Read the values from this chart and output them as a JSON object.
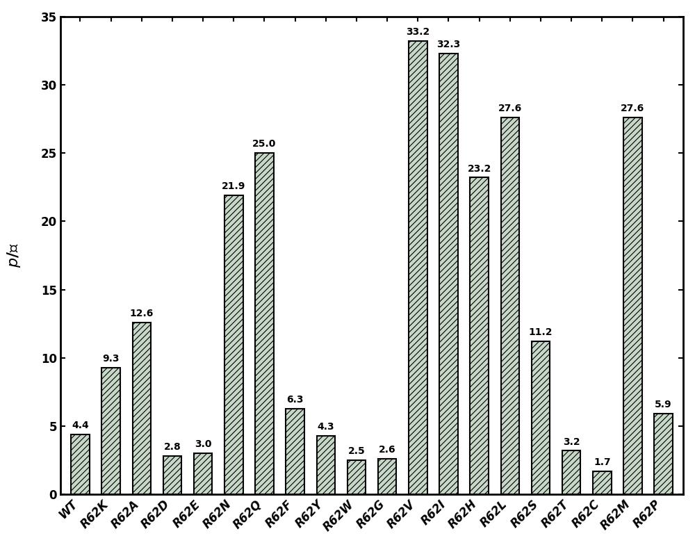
{
  "categories": [
    "WT",
    "R62K",
    "R62A",
    "R62D",
    "R62E",
    "R62N",
    "R62Q",
    "R62F",
    "R62Y",
    "R62W",
    "R62G",
    "R62V",
    "R62I",
    "R62H",
    "R62L",
    "R62S",
    "R62T",
    "R62C",
    "R62M",
    "R62P"
  ],
  "values": [
    4.4,
    9.3,
    12.6,
    2.8,
    3.0,
    21.9,
    25.0,
    6.3,
    4.3,
    2.5,
    2.6,
    33.2,
    32.3,
    23.2,
    27.6,
    11.2,
    3.2,
    1.7,
    27.6,
    5.9
  ],
  "bar_facecolor": "#c8d8c8",
  "bar_edgecolor": "#000000",
  "hatch": "////",
  "ylim": [
    0,
    35
  ],
  "yticks": [
    0,
    5,
    10,
    15,
    20,
    25,
    30,
    35
  ],
  "tick_label_fontsize": 12,
  "value_label_fontsize": 10,
  "bar_width": 0.6,
  "figure_width": 10.0,
  "figure_height": 7.84,
  "background_color": "#ffffff",
  "spine_linewidth": 2.0,
  "hatch_linewidth": 0.8
}
